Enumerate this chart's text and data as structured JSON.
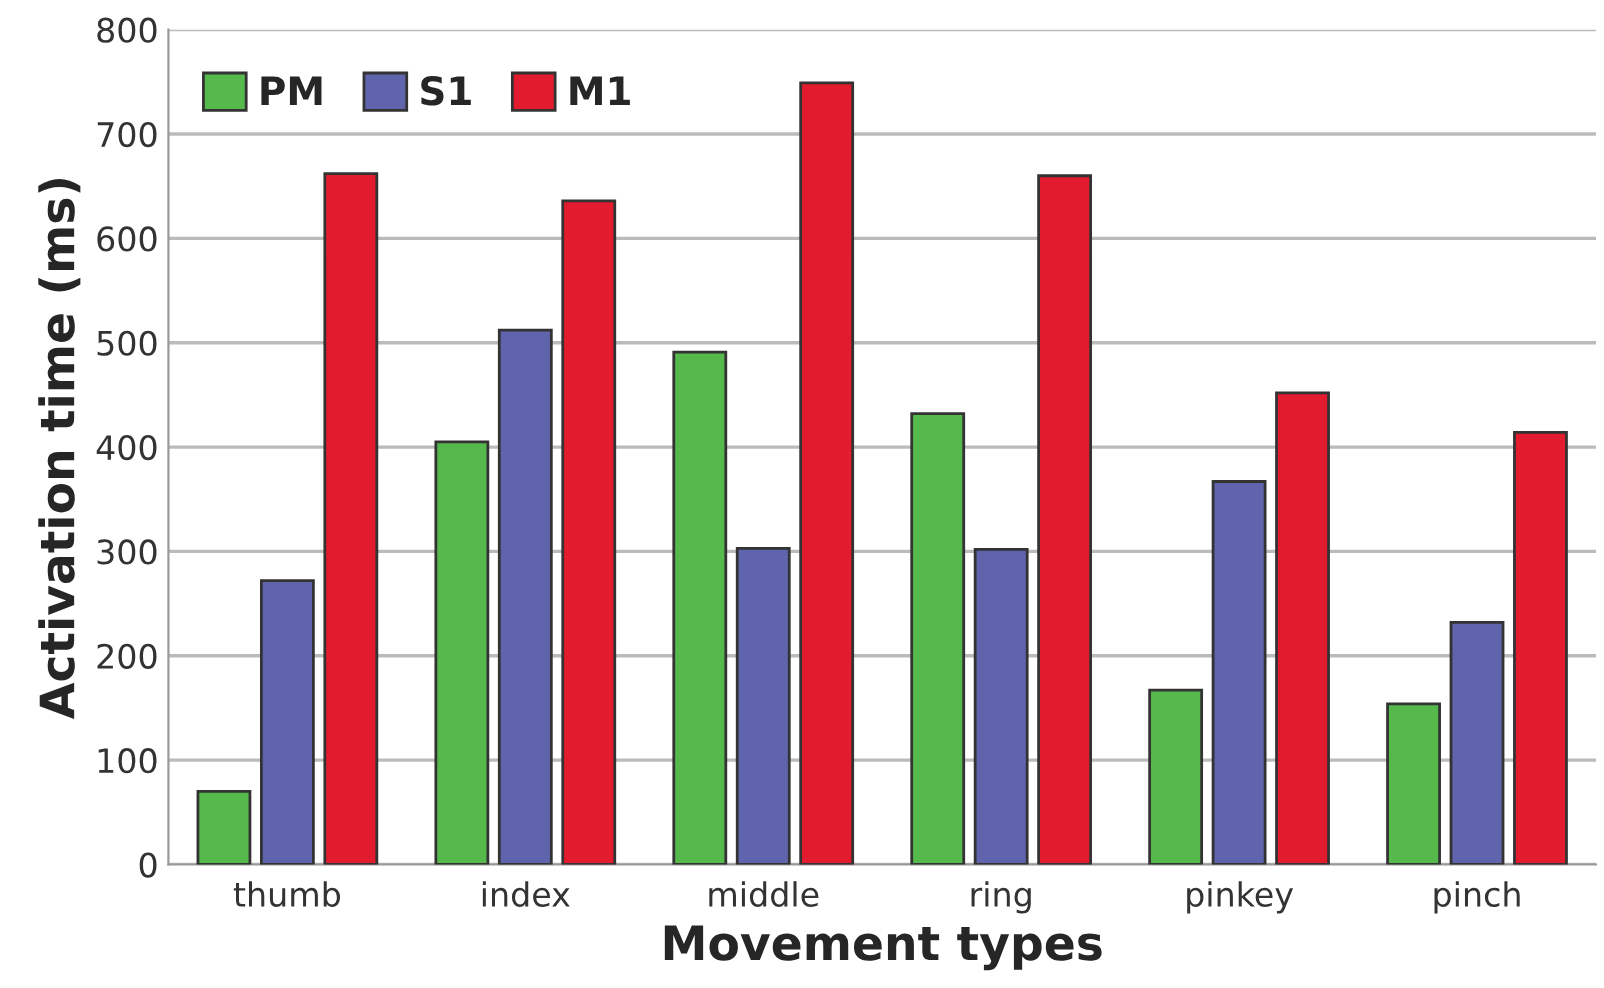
{
  "chart_data": {
    "type": "bar",
    "xlabel": "Movement types",
    "ylabel": "Activation time (ms)",
    "categories": [
      "thumb",
      "index",
      "middle",
      "ring",
      "pinkey",
      "pinch"
    ],
    "series": [
      {
        "name": "PM",
        "color": "#55b94b",
        "values": [
          70,
          405,
          491,
          432,
          167,
          154
        ]
      },
      {
        "name": "S1",
        "color": "#5f64ad",
        "values": [
          272,
          512,
          303,
          302,
          367,
          232
        ]
      },
      {
        "name": "M1",
        "color": "#e31b2e",
        "values": [
          662,
          636,
          749,
          660,
          452,
          414
        ]
      }
    ],
    "ylim": [
      0,
      800
    ],
    "yticks": [
      0,
      100,
      200,
      300,
      400,
      500,
      600,
      700,
      800
    ],
    "grid": "y",
    "legend": "top left"
  }
}
